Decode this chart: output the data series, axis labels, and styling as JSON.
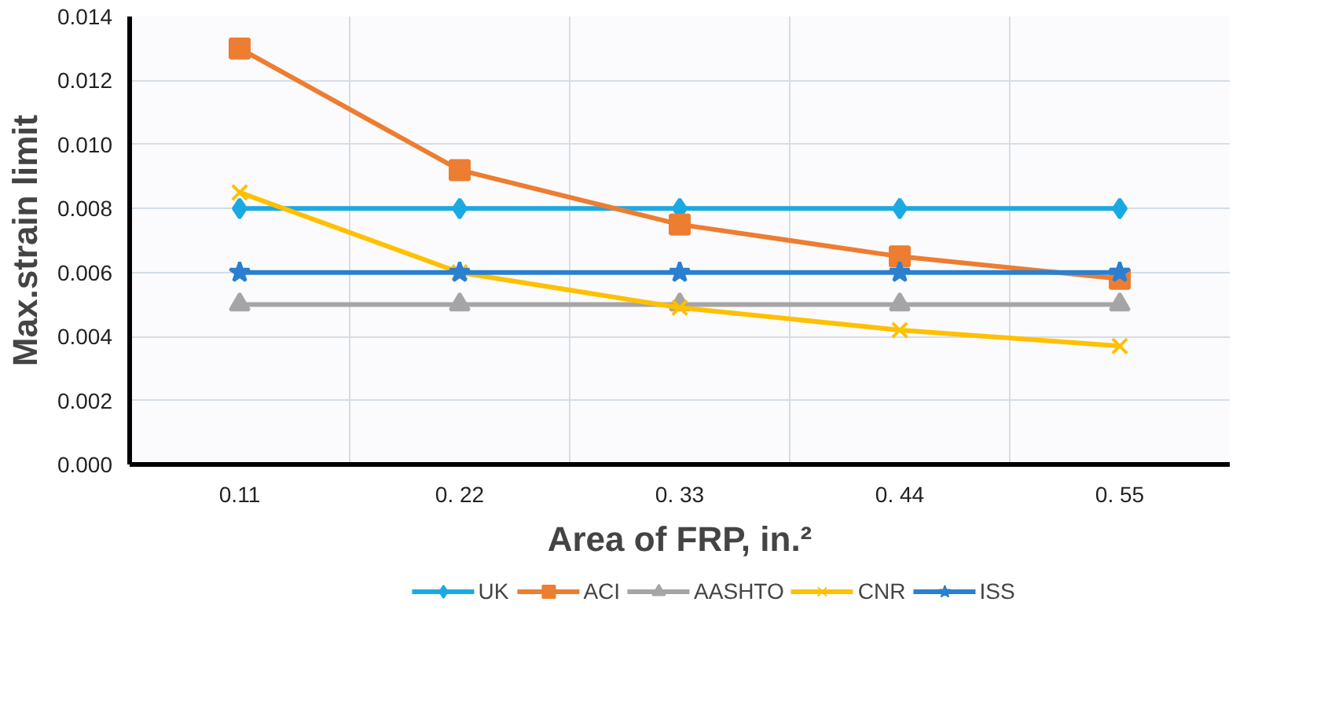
{
  "chart_data": {
    "type": "line",
    "xlabel": "Area of FRP, in.²",
    "ylabel": "Max.strain limit",
    "categories": [
      "0.11",
      "0. 22",
      "0. 33",
      "0. 44",
      "0. 55"
    ],
    "series": [
      {
        "name": "UK",
        "color": "#1ba9e1",
        "marker": "diamond",
        "values": [
          0.008,
          0.008,
          0.008,
          0.008,
          0.008
        ]
      },
      {
        "name": "ACI",
        "color": "#ed7d31",
        "marker": "square",
        "values": [
          0.013,
          0.0092,
          0.0075,
          0.0065,
          0.0058
        ]
      },
      {
        "name": "AASHTO",
        "color": "#a5a5a5",
        "marker": "triangle",
        "values": [
          0.005,
          0.005,
          0.005,
          0.005,
          0.005
        ]
      },
      {
        "name": "CNR",
        "color": "#ffc000",
        "marker": "cross",
        "values": [
          0.0085,
          0.006,
          0.0049,
          0.0042,
          0.0037
        ]
      },
      {
        "name": "ISS",
        "color": "#2a7fd0",
        "marker": "star",
        "values": [
          0.006,
          0.006,
          0.006,
          0.006,
          0.006
        ]
      }
    ],
    "ylim": [
      0,
      0.014
    ],
    "yticks": [
      {
        "value": 0,
        "label": "0.000"
      },
      {
        "value": 0.002,
        "label": "0.002"
      },
      {
        "value": 0.004,
        "label": "0.004"
      },
      {
        "value": 0.006,
        "label": "0.006"
      },
      {
        "value": 0.008,
        "label": "0.008"
      },
      {
        "value": 0.01,
        "label": "0.010"
      },
      {
        "value": 0.012,
        "label": "0.012"
      },
      {
        "value": 0.014,
        "label": "0.014"
      }
    ],
    "grid": true,
    "legend": "bottom",
    "line_style": "solid"
  }
}
